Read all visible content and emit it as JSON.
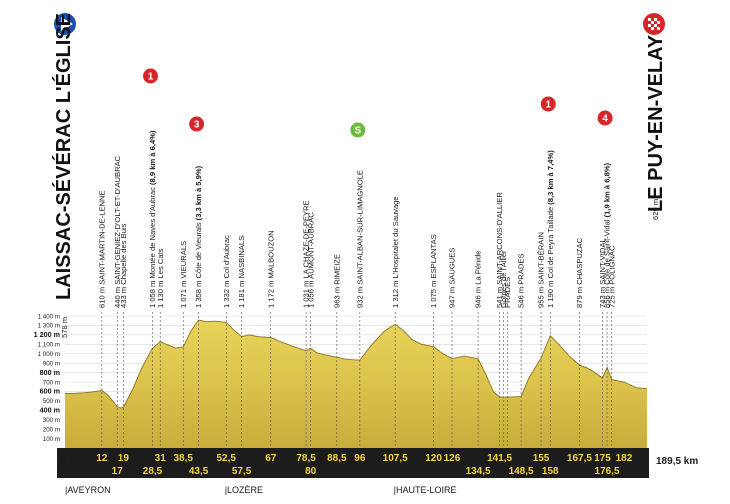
{
  "chart_data": {
    "type": "area",
    "start": {
      "name": "LAISSAC-SÉVÉRAC L'ÉGLISE",
      "altitude": "578 m",
      "km": "0"
    },
    "finish": {
      "name": "LE PUY-EN-VELAY",
      "altitude": "629 m",
      "km": "189,5 km"
    },
    "x_range": [
      0,
      189.5
    ],
    "ylim": [
      0,
      1400
    ],
    "y_ticks": [
      "100 m",
      "200 m",
      "300 m",
      "400 m",
      "500 m",
      "600 m",
      "700 m",
      "800 m",
      "900 m",
      "1 000 m",
      "1 100 m",
      "1 200 m",
      "1 300 m",
      "1 400 m"
    ],
    "y_bold": [
      "400 m",
      "600 m",
      "800 m",
      "1 200 m"
    ],
    "km_top": [
      "12",
      "19",
      "31",
      "38,5",
      "52,5",
      "67",
      "78,5",
      "88,5",
      "96",
      "107,5",
      "120",
      "126",
      "141,5",
      "155",
      "167,5",
      "175",
      "182"
    ],
    "km_bottom": [
      "17",
      "28,5",
      "43,5",
      "57,5",
      "80",
      "134,5",
      "148,5",
      "158",
      "176,5"
    ],
    "regions": [
      "|AVEYRON",
      "|LOZÈRE",
      "|HAUTE-LOIRE"
    ],
    "waypoints": [
      {
        "km": 12,
        "lines": [
          "610 m SAINT-MARTIN-DE-LENNE"
        ]
      },
      {
        "km": 17,
        "lines": [
          "440 m SAINT-GENIEZ-D'OLT-ET-D'AUBRAC"
        ]
      },
      {
        "km": 19,
        "lines": [
          "433 m Chapelle des Buis"
        ]
      },
      {
        "km": 28.5,
        "lines": [
          "1 058 m Montée de Naves d'Aubrac ",
          "(8,9 km à 6,4%)"
        ],
        "bold_idx": 1
      },
      {
        "km": 31,
        "lines": [
          "1 130 m Les Cats"
        ]
      },
      {
        "km": 38.5,
        "lines": [
          "1 071 m VIEURALS"
        ]
      },
      {
        "km": 43.5,
        "lines": [
          "1 358 m Côte de Vieurals ",
          "(3,3 km à 5,9%)"
        ],
        "bold_idx": 1
      },
      {
        "km": 52.5,
        "lines": [
          "1 332 m Col d'Aubrac"
        ]
      },
      {
        "km": 57.5,
        "lines": [
          "1 181 m NASBINALS"
        ]
      },
      {
        "km": 67,
        "lines": [
          "1 172 m MALBOUZON"
        ]
      },
      {
        "km": 78.5,
        "lines": [
          "1 031 m LA CHAZE-DE-PEYRE"
        ]
      },
      {
        "km": 80,
        "lines": [
          "1 056 m AUMONT-AUBRAC"
        ]
      },
      {
        "km": 88.5,
        "lines": [
          "963 m RIMEIZE"
        ]
      },
      {
        "km": 96,
        "lines": [
          "932 m SAINT-ALBAN-SUR-LIMAGNOLE"
        ]
      },
      {
        "km": 107.5,
        "lines": [
          "1 312 m L'Hospitalet du Sauvage"
        ]
      },
      {
        "km": 120,
        "lines": [
          "1 075 m ESPLANTAS"
        ]
      },
      {
        "km": 126,
        "lines": [
          "947 m SAUGUES"
        ]
      },
      {
        "km": 134.5,
        "lines": [
          "946 m La Pénide"
        ]
      },
      {
        "km": 141.5,
        "lines": [
          "541 m SAINT-ARCONS-D'ALLIER"
        ]
      },
      {
        "km": 142.8,
        "lines": [
          "Gorges de l'Allier"
        ]
      },
      {
        "km": 144.0,
        "lines": [
          "PRADES"
        ]
      },
      {
        "km": 148.5,
        "lines": [
          "546 m PRADES"
        ]
      },
      {
        "km": 155,
        "lines": [
          "955 m SAINT-BÉRAIN"
        ]
      },
      {
        "km": 158,
        "lines": [
          "1 190 m Col de Peyra Taillade ",
          "(8,3 km à 7,4%)"
        ],
        "bold_idx": 1
      },
      {
        "km": 167.5,
        "lines": [
          "879 m CHASPUZAC"
        ]
      },
      {
        "km": 175,
        "lines": [
          "743 m SAINT-VIDAL"
        ]
      },
      {
        "km": 176.5,
        "lines": [
          "856 m Côte de Saint-Vidal ",
          "(1,9 km à 6,8%)"
        ],
        "bold_idx": 1
      },
      {
        "km": 178,
        "lines": [
          "725 m POLIGNAC"
        ]
      }
    ],
    "climbs": [
      {
        "km": 28.5,
        "category": "1",
        "color": "#d6262b"
      },
      {
        "km": 43.5,
        "category": "3",
        "color": "#d6262b"
      },
      {
        "km": 96,
        "category": "S",
        "color": "#6dbb3c"
      },
      {
        "km": 158,
        "category": "1",
        "color": "#d6262b"
      },
      {
        "km": 176.5,
        "category": "4",
        "color": "#d6262b"
      }
    ],
    "profile": [
      [
        0,
        578
      ],
      [
        3,
        580
      ],
      [
        6,
        585
      ],
      [
        9,
        595
      ],
      [
        12,
        610
      ],
      [
        14,
        560
      ],
      [
        17,
        440
      ],
      [
        18,
        425
      ],
      [
        19,
        433
      ],
      [
        22,
        620
      ],
      [
        25,
        850
      ],
      [
        28.5,
        1058
      ],
      [
        30,
        1100
      ],
      [
        31,
        1130
      ],
      [
        33,
        1100
      ],
      [
        36,
        1060
      ],
      [
        38.5,
        1071
      ],
      [
        41,
        1240
      ],
      [
        43.5,
        1358
      ],
      [
        46,
        1340
      ],
      [
        49,
        1345
      ],
      [
        52.5,
        1332
      ],
      [
        55,
        1250
      ],
      [
        57.5,
        1181
      ],
      [
        60,
        1200
      ],
      [
        63,
        1180
      ],
      [
        67,
        1172
      ],
      [
        70,
        1130
      ],
      [
        74,
        1080
      ],
      [
        78.5,
        1031
      ],
      [
        80,
        1056
      ],
      [
        82,
        1010
      ],
      [
        85,
        985
      ],
      [
        88.5,
        963
      ],
      [
        91,
        945
      ],
      [
        94,
        935
      ],
      [
        96,
        932
      ],
      [
        100,
        1100
      ],
      [
        104,
        1240
      ],
      [
        107.5,
        1312
      ],
      [
        110,
        1250
      ],
      [
        113,
        1150
      ],
      [
        116,
        1100
      ],
      [
        120,
        1075
      ],
      [
        123,
        1000
      ],
      [
        126,
        947
      ],
      [
        130,
        975
      ],
      [
        134.5,
        946
      ],
      [
        137,
        780
      ],
      [
        139.5,
        600
      ],
      [
        141.5,
        541
      ],
      [
        145,
        540
      ],
      [
        148.5,
        546
      ],
      [
        151,
        740
      ],
      [
        155,
        955
      ],
      [
        158,
        1190
      ],
      [
        161,
        1090
      ],
      [
        164,
        980
      ],
      [
        167.5,
        879
      ],
      [
        170,
        850
      ],
      [
        173,
        790
      ],
      [
        175,
        743
      ],
      [
        176.5,
        856
      ],
      [
        177.5,
        770
      ],
      [
        178,
        725
      ],
      [
        182,
        700
      ],
      [
        186,
        640
      ],
      [
        189.5,
        629
      ]
    ]
  }
}
